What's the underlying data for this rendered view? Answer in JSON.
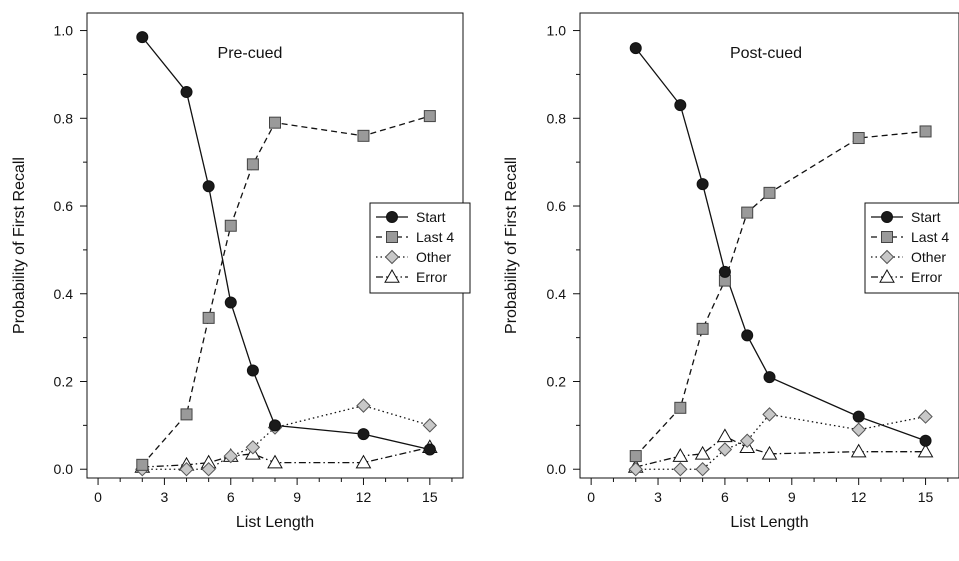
{
  "chart_data": [
    {
      "type": "line",
      "title": "Pre-cued",
      "xlabel": "List Length",
      "ylabel": "Probability of First Recall",
      "xlim": [
        -0.5,
        16.5
      ],
      "ylim": [
        -0.02,
        1.04
      ],
      "xticks": [
        0,
        3,
        6,
        9,
        12,
        15
      ],
      "xtick_labels": [
        "0",
        "3",
        "6",
        "9",
        "12",
        "15"
      ],
      "yticks": [
        0.0,
        0.2,
        0.4,
        0.6,
        0.8,
        1.0
      ],
      "ytick_labels": [
        "0.0",
        "0.2",
        "0.4",
        "0.6",
        "0.8",
        "1.0"
      ],
      "grid": false,
      "legend_position": "right",
      "x": [
        2,
        4,
        5,
        6,
        7,
        8,
        12,
        15
      ],
      "series": [
        {
          "name": "Start",
          "marker": "circle",
          "line": "solid",
          "values": [
            0.985,
            0.86,
            0.645,
            0.38,
            0.225,
            0.1,
            0.08,
            0.045
          ]
        },
        {
          "name": "Last 4",
          "marker": "square",
          "line": "dashed",
          "values": [
            0.01,
            0.125,
            0.345,
            0.555,
            0.695,
            0.79,
            0.76,
            0.805
          ]
        },
        {
          "name": "Other",
          "marker": "diamond",
          "line": "dotted",
          "values": [
            0.0,
            0.0,
            0.0,
            0.03,
            0.05,
            0.095,
            0.145,
            0.1
          ]
        },
        {
          "name": "Error",
          "marker": "triangle",
          "line": "dashdot",
          "values": [
            0.005,
            0.01,
            0.015,
            0.03,
            0.035,
            0.015,
            0.015,
            0.05
          ]
        }
      ]
    },
    {
      "type": "line",
      "title": "Post-cued",
      "xlabel": "List Length",
      "ylabel": "Probability of First Recall",
      "xlim": [
        -0.5,
        16.5
      ],
      "ylim": [
        -0.02,
        1.04
      ],
      "xticks": [
        0,
        3,
        6,
        9,
        12,
        15
      ],
      "xtick_labels": [
        "0",
        "3",
        "6",
        "9",
        "12",
        "15"
      ],
      "yticks": [
        0.0,
        0.2,
        0.4,
        0.6,
        0.8,
        1.0
      ],
      "ytick_labels": [
        "0.0",
        "0.2",
        "0.4",
        "0.6",
        "0.8",
        "1.0"
      ],
      "grid": false,
      "legend_position": "right",
      "x": [
        2,
        4,
        5,
        6,
        7,
        8,
        12,
        15
      ],
      "series": [
        {
          "name": "Start",
          "marker": "circle",
          "line": "solid",
          "values": [
            0.96,
            0.83,
            0.65,
            0.45,
            0.305,
            0.21,
            0.12,
            0.065
          ]
        },
        {
          "name": "Last 4",
          "marker": "square",
          "line": "dashed",
          "values": [
            0.03,
            0.14,
            0.32,
            0.43,
            0.585,
            0.63,
            0.755,
            0.77
          ]
        },
        {
          "name": "Other",
          "marker": "diamond",
          "line": "dotted",
          "values": [
            0.0,
            0.0,
            0.0,
            0.045,
            0.065,
            0.125,
            0.09,
            0.12
          ]
        },
        {
          "name": "Error",
          "marker": "triangle",
          "line": "dashdot",
          "values": [
            0.005,
            0.03,
            0.035,
            0.075,
            0.05,
            0.035,
            0.04,
            0.04
          ]
        }
      ]
    }
  ],
  "colors": {
    "axis": "#111111",
    "start_fill": "#1a1a1a",
    "last4_fill": "#9a9a9a",
    "other_fill": "#c8c8c8",
    "error_fill": "#ffffff"
  }
}
